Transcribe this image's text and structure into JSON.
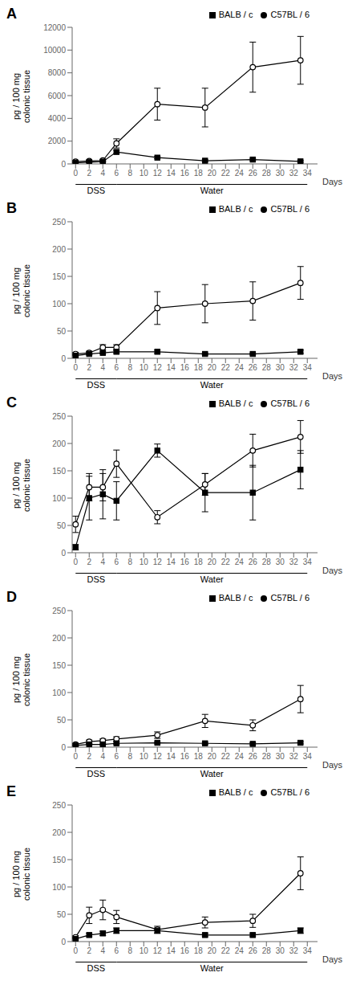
{
  "chart_data": [
    {
      "type": "line",
      "title": "A",
      "xlabel": "Days",
      "ylabel": "pg / 100  mg\ncolonic tissue",
      "x": [
        0,
        2,
        4,
        6,
        12,
        19,
        26,
        33
      ],
      "xlim": [
        -0.5,
        35.5
      ],
      "xticks": [
        0,
        2,
        4,
        6,
        8,
        10,
        12,
        14,
        16,
        18,
        20,
        22,
        24,
        26,
        28,
        30,
        32,
        34
      ],
      "ylim": [
        0,
        12000
      ],
      "yticks": [
        0,
        2000,
        4000,
        6000,
        8000,
        10000,
        12000
      ],
      "grid": false,
      "legend": "top",
      "series": [
        {
          "name": "C57BL / 6",
          "color": "#000000",
          "marker": "open_circle",
          "values": [
            200,
            250,
            300,
            1800,
            5250,
            4950,
            8500,
            9100
          ],
          "errors": [
            80,
            80,
            80,
            400,
            1400,
            1700,
            2200,
            2100
          ]
        },
        {
          "name": "BALB / c",
          "color": "#000000",
          "marker": "square",
          "values": [
            100,
            150,
            200,
            1050,
            550,
            280,
            380,
            220
          ],
          "errors": [
            50,
            50,
            70,
            150,
            100,
            80,
            100,
            80
          ]
        }
      ],
      "annotations": [
        {
          "text": "DSS",
          "x_start": 0,
          "x_end": 6
        },
        {
          "text": "Water",
          "x_start": 6,
          "x_end": 34
        }
      ]
    },
    {
      "type": "line",
      "title": "B",
      "xlabel": "Days",
      "ylabel": "pg / 100  mg\ncolonic tissue",
      "x": [
        0,
        2,
        4,
        6,
        12,
        19,
        26,
        33
      ],
      "xlim": [
        -0.5,
        35.5
      ],
      "xticks": [
        0,
        2,
        4,
        6,
        8,
        10,
        12,
        14,
        16,
        18,
        20,
        22,
        24,
        26,
        28,
        30,
        32,
        34
      ],
      "ylim": [
        0,
        250
      ],
      "yticks": [
        0,
        50,
        100,
        150,
        200,
        250
      ],
      "grid": false,
      "legend": "top",
      "series": [
        {
          "name": "C57BL / 6",
          "color": "#000000",
          "marker": "open_circle",
          "values": [
            8,
            10,
            20,
            20,
            92,
            100,
            105,
            138
          ],
          "errors": [
            3,
            3,
            5,
            5,
            30,
            35,
            35,
            30
          ]
        },
        {
          "name": "BALB / c",
          "color": "#000000",
          "marker": "square",
          "values": [
            5,
            8,
            10,
            12,
            12,
            8,
            8,
            12
          ],
          "errors": [
            2,
            2,
            2,
            3,
            3,
            2,
            2,
            3
          ]
        }
      ],
      "annotations": [
        {
          "text": "DSS",
          "x_start": 0,
          "x_end": 6
        },
        {
          "text": "Water",
          "x_start": 6,
          "x_end": 34
        }
      ]
    },
    {
      "type": "line",
      "title": "C",
      "xlabel": "Days",
      "ylabel": "pg / 100  mg\ncolonic tissue",
      "x": [
        0,
        2,
        4,
        6,
        12,
        19,
        26,
        33
      ],
      "xlim": [
        -0.5,
        35.5
      ],
      "xticks": [
        0,
        2,
        4,
        6,
        8,
        10,
        12,
        14,
        16,
        18,
        20,
        22,
        24,
        26,
        28,
        30,
        32,
        34
      ],
      "ylim": [
        0,
        250
      ],
      "yticks": [
        0,
        50,
        100,
        150,
        200,
        250
      ],
      "grid": false,
      "legend": "top",
      "series": [
        {
          "name": "C57BL / 6",
          "color": "#000000",
          "marker": "open_circle",
          "values": [
            52,
            120,
            120,
            163,
            65,
            125,
            187,
            212
          ],
          "errors": [
            15,
            25,
            25,
            25,
            12,
            20,
            30,
            30
          ]
        },
        {
          "name": "BALB / c",
          "color": "#000000",
          "marker": "square",
          "values": [
            10,
            100,
            107,
            95,
            187,
            110,
            110,
            152
          ],
          "errors": [
            5,
            40,
            45,
            35,
            12,
            35,
            50,
            35
          ]
        }
      ],
      "annotations": [
        {
          "text": "DSS",
          "x_start": 0,
          "x_end": 6
        },
        {
          "text": "Water",
          "x_start": 6,
          "x_end": 34
        }
      ]
    },
    {
      "type": "line",
      "title": "D",
      "xlabel": "Days",
      "ylabel": "pg / 100  mg\ncolonic tissue",
      "x": [
        0,
        2,
        4,
        6,
        12,
        19,
        26,
        33
      ],
      "xlim": [
        -0.5,
        35.5
      ],
      "xticks": [
        0,
        2,
        4,
        6,
        8,
        10,
        12,
        14,
        16,
        18,
        20,
        22,
        24,
        26,
        28,
        30,
        32,
        34
      ],
      "ylim": [
        0,
        250
      ],
      "yticks": [
        0,
        50,
        100,
        150,
        200,
        250
      ],
      "grid": false,
      "legend": "top",
      "series": [
        {
          "name": "C57BL / 6",
          "color": "#000000",
          "marker": "open_circle",
          "values": [
            5,
            10,
            12,
            15,
            22,
            48,
            40,
            88
          ],
          "errors": [
            2,
            3,
            3,
            4,
            6,
            12,
            10,
            25
          ]
        },
        {
          "name": "BALB / c",
          "color": "#000000",
          "marker": "square",
          "values": [
            3,
            5,
            5,
            7,
            8,
            7,
            6,
            8
          ],
          "errors": [
            1,
            1,
            1,
            2,
            2,
            2,
            2,
            2
          ]
        }
      ],
      "annotations": [
        {
          "text": "DSS",
          "x_start": 0,
          "x_end": 6
        },
        {
          "text": "Water",
          "x_start": 6,
          "x_end": 34
        }
      ]
    },
    {
      "type": "line",
      "title": "E",
      "xlabel": "Days",
      "ylabel": "pg / 100  mg\ncolonic tissue",
      "x": [
        0,
        2,
        4,
        6,
        12,
        19,
        26,
        33
      ],
      "xlim": [
        -0.5,
        35.5
      ],
      "xticks": [
        0,
        2,
        4,
        6,
        8,
        10,
        12,
        14,
        16,
        18,
        20,
        22,
        24,
        26,
        28,
        30,
        32,
        34
      ],
      "ylim": [
        0,
        250
      ],
      "yticks": [
        0,
        50,
        100,
        150,
        200,
        250
      ],
      "grid": false,
      "legend": "top",
      "series": [
        {
          "name": "C57BL / 6",
          "color": "#000000",
          "marker": "open_circle",
          "values": [
            8,
            48,
            58,
            45,
            22,
            35,
            38,
            125
          ],
          "errors": [
            3,
            15,
            18,
            12,
            6,
            10,
            12,
            30
          ]
        },
        {
          "name": "BALB / c",
          "color": "#000000",
          "marker": "square",
          "values": [
            5,
            12,
            15,
            20,
            20,
            12,
            12,
            20
          ],
          "errors": [
            2,
            3,
            4,
            5,
            5,
            3,
            3,
            5
          ]
        }
      ],
      "annotations": [
        {
          "text": "DSS",
          "x_start": 0,
          "x_end": 6
        },
        {
          "text": "Water",
          "x_start": 6,
          "x_end": 34
        }
      ]
    }
  ]
}
